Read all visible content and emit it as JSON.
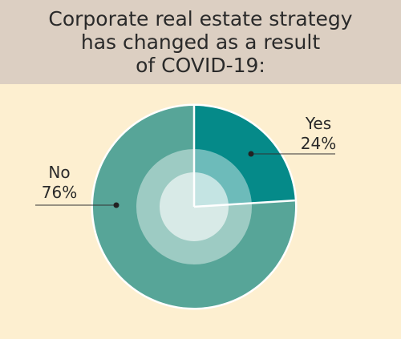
{
  "chart_data": {
    "type": "pie",
    "title": "Corporate real estate strategy\nhas changed as a result\nof COVID-19:",
    "slices": [
      {
        "label": "Yes",
        "value": 24,
        "value_label": "24%",
        "color": "#058a89"
      },
      {
        "label": "No",
        "value": 76,
        "value_label": "76%",
        "color": "#57a598"
      }
    ],
    "background_color": "#fdefd0",
    "title_band_color": "#dccfc2"
  }
}
